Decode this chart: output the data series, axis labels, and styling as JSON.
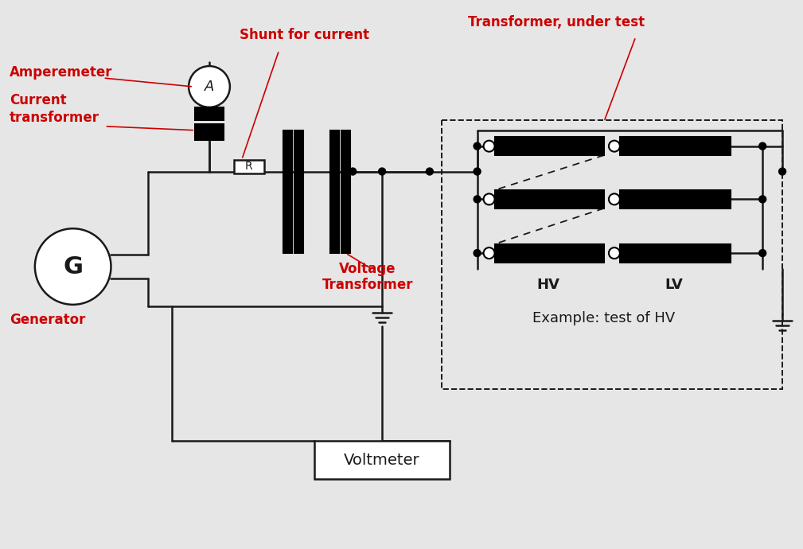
{
  "bg_color": "#e6e6e6",
  "line_color": "#1a1a1a",
  "red_color": "#cc0000",
  "labels": {
    "amperemeter": "Amperemeter",
    "current_transformer": "Current\ntransformer",
    "shunt_for_current": "Shunt for current",
    "transformer_under_test": "Transformer, under test",
    "voltage_transformer": "Voltage\nTransformer",
    "generator": "Generator",
    "voltmeter": "Voltmeter",
    "HV": "HV",
    "LV": "LV",
    "example": "Example: test of HV"
  },
  "figsize": [
    10.09,
    6.9
  ],
  "dpi": 100
}
